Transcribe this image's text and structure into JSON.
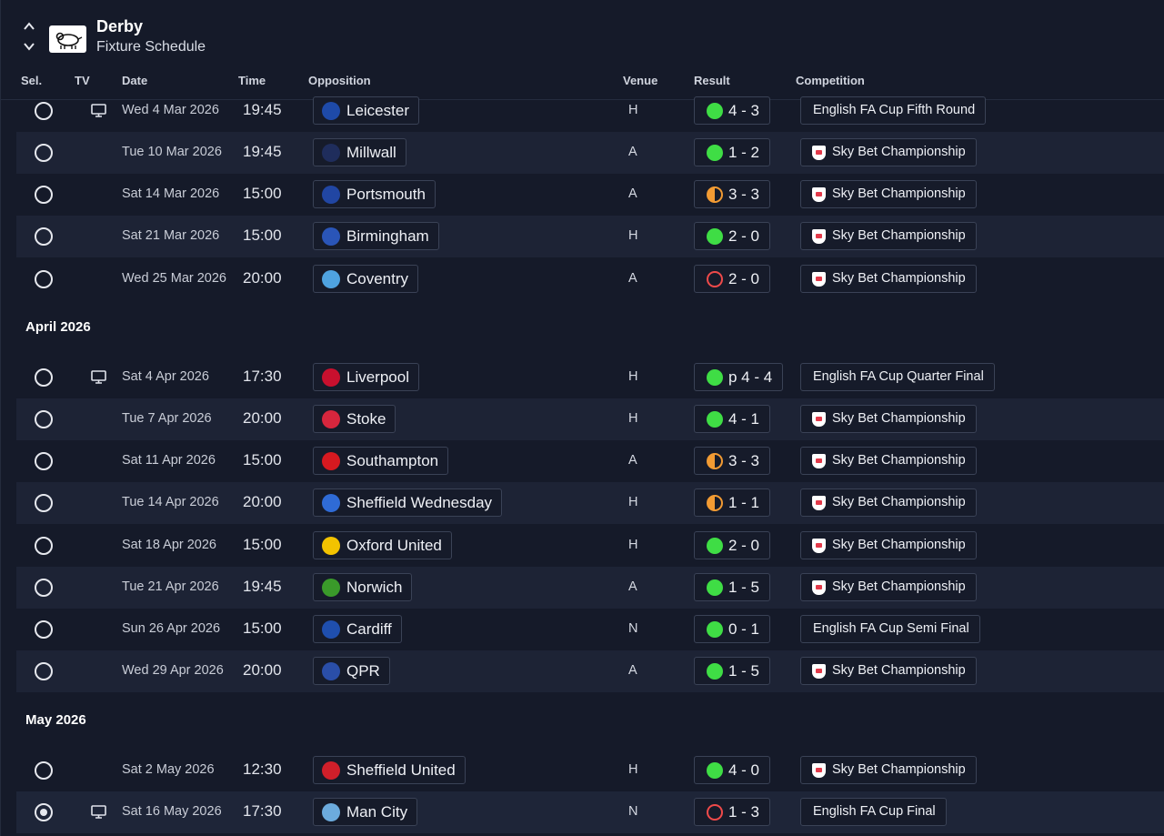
{
  "header": {
    "team": "Derby",
    "title": "Fixture Schedule"
  },
  "columns": {
    "sel": "Sel.",
    "tv": "TV",
    "date": "Date",
    "time": "Time",
    "opposition": "Opposition",
    "venue": "Venue",
    "result": "Result",
    "competition": "Competition"
  },
  "months": {
    "april": "April 2026",
    "may": "May 2026"
  },
  "fixtures": [
    {
      "date": "Wed 4 Mar 2026",
      "time": "19:45",
      "opp": "Leicester",
      "venue": "H",
      "result": "4 - 3",
      "outcome": "win",
      "comp": "English FA Cup Fifth Round",
      "tv": true,
      "badge_color": "#1e4aa8"
    },
    {
      "date": "Tue 10 Mar 2026",
      "time": "19:45",
      "opp": "Millwall",
      "venue": "A",
      "result": "1 - 2",
      "outcome": "win",
      "comp": "Sky Bet Championship",
      "tv": false,
      "badge_color": "#1f2d5c"
    },
    {
      "date": "Sat 14 Mar 2026",
      "time": "15:00",
      "opp": "Portsmouth",
      "venue": "A",
      "result": "3 - 3",
      "outcome": "draw",
      "comp": "Sky Bet Championship",
      "tv": false,
      "badge_color": "#2146a3"
    },
    {
      "date": "Sat 21 Mar 2026",
      "time": "15:00",
      "opp": "Birmingham",
      "venue": "H",
      "result": "2 - 0",
      "outcome": "win",
      "comp": "Sky Bet Championship",
      "tv": false,
      "badge_color": "#2a55b8"
    },
    {
      "date": "Wed 25 Mar 2026",
      "time": "20:00",
      "opp": "Coventry",
      "venue": "A",
      "result": "2 - 0",
      "outcome": "loss",
      "comp": "Sky Bet Championship",
      "tv": false,
      "badge_color": "#4fa3e0"
    },
    {
      "date": "Sat 4 Apr 2026",
      "time": "17:30",
      "opp": "Liverpool",
      "venue": "H",
      "result": "p 4 - 4",
      "outcome": "win",
      "comp": "English FA Cup Quarter Final",
      "tv": true,
      "badge_color": "#c8102e"
    },
    {
      "date": "Tue 7 Apr 2026",
      "time": "20:00",
      "opp": "Stoke",
      "venue": "H",
      "result": "4 - 1",
      "outcome": "win",
      "comp": "Sky Bet Championship",
      "tv": false,
      "badge_color": "#d7263d"
    },
    {
      "date": "Sat 11 Apr 2026",
      "time": "15:00",
      "opp": "Southampton",
      "venue": "A",
      "result": "3 - 3",
      "outcome": "draw",
      "comp": "Sky Bet Championship",
      "tv": false,
      "badge_color": "#d71920"
    },
    {
      "date": "Tue 14 Apr 2026",
      "time": "20:00",
      "opp": "Sheffield Wednesday",
      "venue": "H",
      "result": "1 - 1",
      "outcome": "draw",
      "comp": "Sky Bet Championship",
      "tv": false,
      "badge_color": "#2f6bd6"
    },
    {
      "date": "Sat 18 Apr 2026",
      "time": "15:00",
      "opp": "Oxford United",
      "venue": "H",
      "result": "2 - 0",
      "outcome": "win",
      "comp": "Sky Bet Championship",
      "tv": false,
      "badge_color": "#f3c300"
    },
    {
      "date": "Tue 21 Apr 2026",
      "time": "19:45",
      "opp": "Norwich",
      "venue": "A",
      "result": "1 - 5",
      "outcome": "win",
      "comp": "Sky Bet Championship",
      "tv": false,
      "badge_color": "#3a9a2a"
    },
    {
      "date": "Sun 26 Apr 2026",
      "time": "15:00",
      "opp": "Cardiff",
      "venue": "N",
      "result": "0 - 1",
      "outcome": "win",
      "comp": "English FA Cup Semi Final",
      "tv": false,
      "badge_color": "#1f4fae"
    },
    {
      "date": "Wed 29 Apr 2026",
      "time": "20:00",
      "opp": "QPR",
      "venue": "A",
      "result": "1 - 5",
      "outcome": "win",
      "comp": "Sky Bet Championship",
      "tv": false,
      "badge_color": "#2a4ea8"
    },
    {
      "date": "Sat 2 May 2026",
      "time": "12:30",
      "opp": "Sheffield United",
      "venue": "H",
      "result": "4 - 0",
      "outcome": "win",
      "comp": "Sky Bet Championship",
      "tv": false,
      "badge_color": "#d01f2a"
    },
    {
      "date": "Sat 16 May 2026",
      "time": "17:30",
      "opp": "Man City",
      "venue": "N",
      "result": "1 - 3",
      "outcome": "loss",
      "comp": "English FA Cup Final",
      "tv": true,
      "badge_color": "#6cabdd"
    }
  ]
}
